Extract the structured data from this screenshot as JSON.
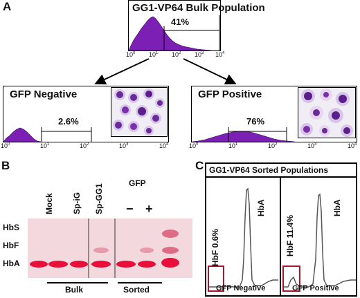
{
  "panel_a": {
    "letter": "A",
    "bulk": {
      "title": "GG1-VP64 Bulk Population",
      "gate_pct": "41%"
    },
    "negative": {
      "title": "GFP Negative",
      "gate_pct": "2.6%"
    },
    "positive": {
      "title": "GFP Positive",
      "gate_pct": "76%"
    },
    "ticks": [
      "10",
      "10",
      "10",
      "10",
      "10"
    ],
    "exps": [
      "0",
      "1",
      "2",
      "3",
      "4"
    ]
  },
  "panel_b": {
    "letter": "B",
    "bands": [
      "HbS",
      "HbF",
      "HbA"
    ],
    "lanes": [
      "Mock",
      "Sp-iG",
      "Sp-GG1"
    ],
    "gfp_label": "GFP",
    "minus": "−",
    "plus": "+",
    "groups": [
      "Bulk",
      "Sorted"
    ]
  },
  "panel_c": {
    "letter": "C",
    "title": "GG1-VP64 Sorted Populations",
    "neg": {
      "hbf": "HbF 0.6%",
      "hba": "HbA",
      "xlabel": "GFP Negative"
    },
    "pos": {
      "hbf": "HbF 11.4%",
      "hba": "HbA",
      "xlabel": "GFP Positive"
    }
  },
  "colors": {
    "histogram": "#7b1fb5",
    "gel_band": "#e8103a",
    "highlight_box": "#a0182a"
  }
}
